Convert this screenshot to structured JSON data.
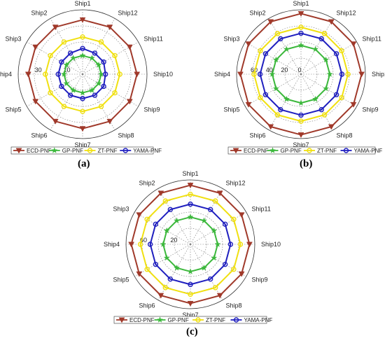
{
  "chart_data": [
    {
      "type": "radar",
      "panel_label": "(a)",
      "categories": [
        "Ship1",
        "Ship12",
        "Ship11",
        "Ship10",
        "Ship9",
        "Ship8",
        "Ship7",
        "Ship6",
        "Ship5",
        "Ship4",
        "Ship3",
        "Ship2"
      ],
      "rmax": 45,
      "rticks": [
        10,
        30
      ],
      "series": [
        {
          "name": "ECD-PNF",
          "color": "#a0392a",
          "marker": "triangle-down",
          "values": [
            38,
            38,
            38,
            38,
            38,
            38,
            38,
            38,
            38,
            38,
            38,
            38
          ]
        },
        {
          "name": "GP-PNF",
          "color": "#3cb83c",
          "marker": "star",
          "values": [
            13,
            13,
            13,
            13,
            13,
            13,
            13,
            13,
            13,
            13,
            13,
            13
          ]
        },
        {
          "name": "ZT-PNF",
          "color": "#f0e010",
          "marker": "circle",
          "values": [
            26,
            26,
            26,
            26,
            26,
            26,
            26,
            26,
            26,
            26,
            26,
            26
          ]
        },
        {
          "name": "YAMA-PNF",
          "color": "#1f1fbf",
          "marker": "circle",
          "values": [
            18,
            17,
            17,
            16,
            17,
            17,
            17,
            17,
            17,
            17,
            17,
            17
          ]
        }
      ]
    },
    {
      "type": "radar",
      "panel_label": "(b)",
      "categories": [
        "Ship1",
        "Ship12",
        "Ship11",
        "Ship10",
        "Ship9",
        "Ship8",
        "Ship7",
        "Ship6",
        "Ship5",
        "Ship4",
        "Ship3",
        "Ship2"
      ],
      "rmax": 85,
      "rticks": [
        0,
        20,
        40,
        60
      ],
      "series": [
        {
          "name": "ECD-PNF",
          "color": "#a0392a",
          "marker": "triangle-down",
          "values": [
            80,
            80,
            80,
            80,
            80,
            80,
            80,
            80,
            80,
            80,
            80,
            80
          ]
        },
        {
          "name": "GP-PNF",
          "color": "#3cb83c",
          "marker": "star",
          "values": [
            38,
            38,
            38,
            38,
            38,
            38,
            38,
            38,
            38,
            38,
            38,
            38
          ]
        },
        {
          "name": "ZT-PNF",
          "color": "#f0e010",
          "marker": "circle",
          "values": [
            62,
            62,
            62,
            62,
            62,
            62,
            62,
            62,
            62,
            62,
            62,
            62
          ]
        },
        {
          "name": "YAMA-PNF",
          "color": "#1f1fbf",
          "marker": "circle",
          "values": [
            54,
            54,
            54,
            54,
            54,
            54,
            54,
            54,
            54,
            54,
            54,
            54
          ]
        }
      ]
    },
    {
      "type": "radar",
      "panel_label": "(c)",
      "categories": [
        "Ship1",
        "Ship12",
        "Ship11",
        "Ship10",
        "Ship9",
        "Ship8",
        "Ship7",
        "Ship6",
        "Ship5",
        "Ship4",
        "Ship3",
        "Ship2"
      ],
      "rmax": 85,
      "rticks": [
        20,
        60
      ],
      "series": [
        {
          "name": "ECD-PNF",
          "color": "#a0392a",
          "marker": "triangle-down",
          "values": [
            78,
            78,
            78,
            78,
            78,
            78,
            78,
            78,
            78,
            78,
            78,
            78
          ]
        },
        {
          "name": "GP-PNF",
          "color": "#3cb83c",
          "marker": "star",
          "values": [
            36,
            36,
            36,
            36,
            36,
            36,
            36,
            36,
            36,
            36,
            36,
            36
          ]
        },
        {
          "name": "ZT-PNF",
          "color": "#f0e010",
          "marker": "circle",
          "values": [
            66,
            66,
            66,
            66,
            66,
            66,
            66,
            66,
            66,
            66,
            66,
            66
          ]
        },
        {
          "name": "YAMA-PNF",
          "color": "#1f1fbf",
          "marker": "circle",
          "values": [
            53,
            53,
            53,
            53,
            53,
            53,
            53,
            53,
            53,
            53,
            53,
            53
          ]
        }
      ]
    }
  ]
}
